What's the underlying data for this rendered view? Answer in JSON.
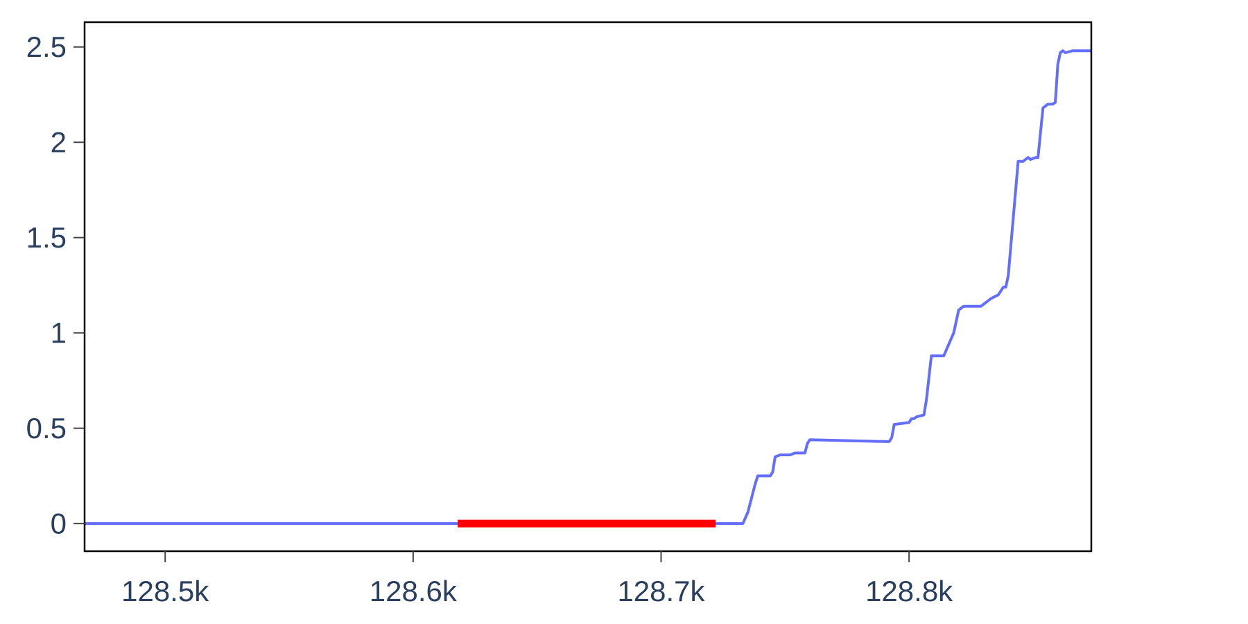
{
  "chart_data": {
    "type": "line",
    "title": "",
    "xlabel": "",
    "ylabel": "",
    "xlim": [
      128467.5,
      128873.5
    ],
    "ylim": [
      -0.145,
      2.63
    ],
    "grid": false,
    "x_ticks": [
      {
        "value": 128500,
        "label": "128.5k"
      },
      {
        "value": 128600,
        "label": "128.6k"
      },
      {
        "value": 128700,
        "label": "128.7k"
      },
      {
        "value": 128800,
        "label": "128.8k"
      }
    ],
    "y_ticks": [
      {
        "value": 0,
        "label": "0"
      },
      {
        "value": 0.5,
        "label": "0.5"
      },
      {
        "value": 1,
        "label": "1"
      },
      {
        "value": 1.5,
        "label": "1.5"
      },
      {
        "value": 2,
        "label": "2"
      },
      {
        "value": 2.5,
        "label": "2.5"
      }
    ],
    "series": [
      {
        "color": "#636efa",
        "x": [
          128467.5,
          128618,
          128722,
          128733,
          128735,
          128738,
          128739,
          128744,
          128745,
          128746,
          128748,
          128752,
          128754,
          128756,
          128758,
          128759,
          128760,
          128791,
          128792,
          128793,
          128794,
          128800,
          128801,
          128802,
          128803,
          128806,
          128807,
          128809,
          128810,
          128812,
          128814,
          128818,
          128820,
          128822,
          128823,
          128824,
          128826,
          128827,
          128829,
          128833,
          128836,
          128837,
          128838,
          128839,
          128840,
          128844,
          128845,
          128846,
          128848,
          128849,
          128851,
          128852,
          128854,
          128855,
          128856,
          128857,
          128858,
          128859,
          128860,
          128861,
          128862,
          128863,
          128866,
          128868,
          128870,
          128871,
          128873.5
        ],
        "y": [
          0,
          0,
          0,
          0,
          0.06,
          0.21,
          0.25,
          0.25,
          0.27,
          0.35,
          0.36,
          0.36,
          0.37,
          0.37,
          0.37,
          0.42,
          0.44,
          0.43,
          0.43,
          0.45,
          0.52,
          0.53,
          0.55,
          0.55,
          0.56,
          0.57,
          0.65,
          0.88,
          0.88,
          0.88,
          0.88,
          1.0,
          1.12,
          1.14,
          1.14,
          1.14,
          1.14,
          1.14,
          1.14,
          1.18,
          1.2,
          1.22,
          1.24,
          1.24,
          1.3,
          1.9,
          1.9,
          1.9,
          1.92,
          1.91,
          1.92,
          1.92,
          2.18,
          2.19,
          2.2,
          2.2,
          2.2,
          2.21,
          2.41,
          2.47,
          2.48,
          2.47,
          2.48,
          2.48,
          2.48,
          2.48,
          2.48
        ]
      },
      {
        "color": "#ff0000",
        "x": [
          128618,
          128722
        ],
        "y": [
          0,
          0
        ]
      }
    ]
  }
}
